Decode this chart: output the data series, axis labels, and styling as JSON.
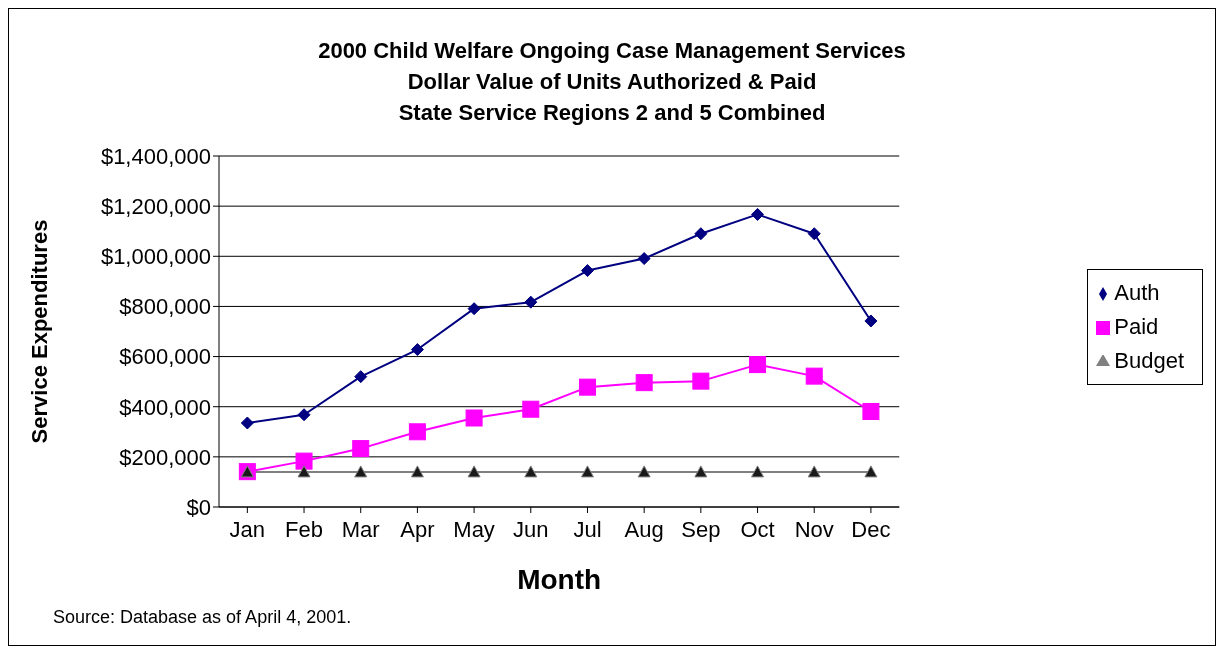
{
  "chart_data": {
    "type": "line",
    "title": "2000 Child Welfare Ongoing Case Management Services\nDollar Value of Units Authorized & Paid\nState Service Regions 2 and 5 Combined",
    "xlabel": "Month",
    "ylabel": "Service Expenditures",
    "categories": [
      "Jan",
      "Feb",
      "Mar",
      "Apr",
      "May",
      "Jun",
      "Jul",
      "Aug",
      "Sep",
      "Oct",
      "Nov",
      "Dec"
    ],
    "series": [
      {
        "name": "Auth",
        "color": "#000080",
        "marker": "diamond",
        "values": [
          335000,
          368000,
          520000,
          628000,
          791000,
          817000,
          943000,
          991000,
          1090000,
          1167000,
          1090000,
          742000
        ]
      },
      {
        "name": "Paid",
        "color": "#ff00ff",
        "marker": "square",
        "values": [
          141000,
          183000,
          233000,
          300000,
          355000,
          390000,
          478000,
          496000,
          502000,
          568000,
          522000,
          381000
        ]
      },
      {
        "name": "Budget",
        "color": "#808080",
        "marker": "triangle",
        "values": [
          140000,
          140000,
          140000,
          140000,
          140000,
          140000,
          140000,
          140000,
          140000,
          140000,
          140000,
          140000
        ]
      }
    ],
    "ylim": [
      0,
      1400000
    ],
    "yticks": [
      {
        "value": 0,
        "label": "$0"
      },
      {
        "value": 200000,
        "label": "$200,000"
      },
      {
        "value": 400000,
        "label": "$400,000"
      },
      {
        "value": 600000,
        "label": "$600,000"
      },
      {
        "value": 800000,
        "label": "$800,000"
      },
      {
        "value": 1000000,
        "label": "$1,000,000"
      },
      {
        "value": 1200000,
        "label": "$1,200,000"
      },
      {
        "value": 1400000,
        "label": "$1,400,000"
      }
    ],
    "grid": "y",
    "legend": "right",
    "annotations": [
      "Source:  Database as of April 4, 2001."
    ]
  }
}
